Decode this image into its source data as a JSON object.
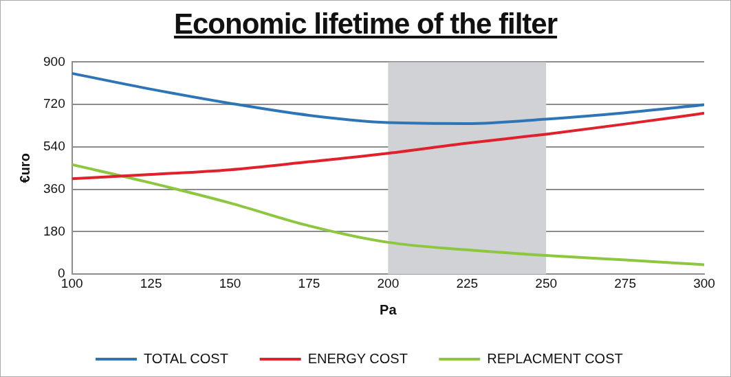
{
  "chart_data": {
    "type": "line",
    "title": "Economic lifetime of the filter",
    "xlabel": "Pa",
    "ylabel": "€uro",
    "x": [
      100,
      125,
      150,
      175,
      200,
      225,
      250,
      275,
      300
    ],
    "series": [
      {
        "name": "TOTAL COST",
        "color": "#2e75b6",
        "values": [
          852,
          785,
          725,
          674,
          643,
          639,
          658,
          685,
          719
        ]
      },
      {
        "name": "ENERGY COST",
        "color": "#e0202a",
        "values": [
          405,
          423,
          443,
          477,
          513,
          556,
          594,
          637,
          683
        ]
      },
      {
        "name": "REPLACMENT COST",
        "color": "#8dc63f",
        "values": [
          465,
          387,
          302,
          205,
          135,
          103,
          79,
          60,
          40
        ]
      }
    ],
    "xlim": [
      100,
      300
    ],
    "xticks": [
      100,
      125,
      150,
      175,
      200,
      225,
      250,
      275,
      300
    ],
    "ylim": [
      0,
      900
    ],
    "yticks": [
      0,
      180,
      360,
      540,
      720,
      900
    ],
    "bands": [
      {
        "axis": "x",
        "from": 200,
        "to": 250,
        "color": "#d0d2d5"
      }
    ],
    "grid": "y",
    "legend": "bottom",
    "marker": "none",
    "line_style": "solid"
  }
}
